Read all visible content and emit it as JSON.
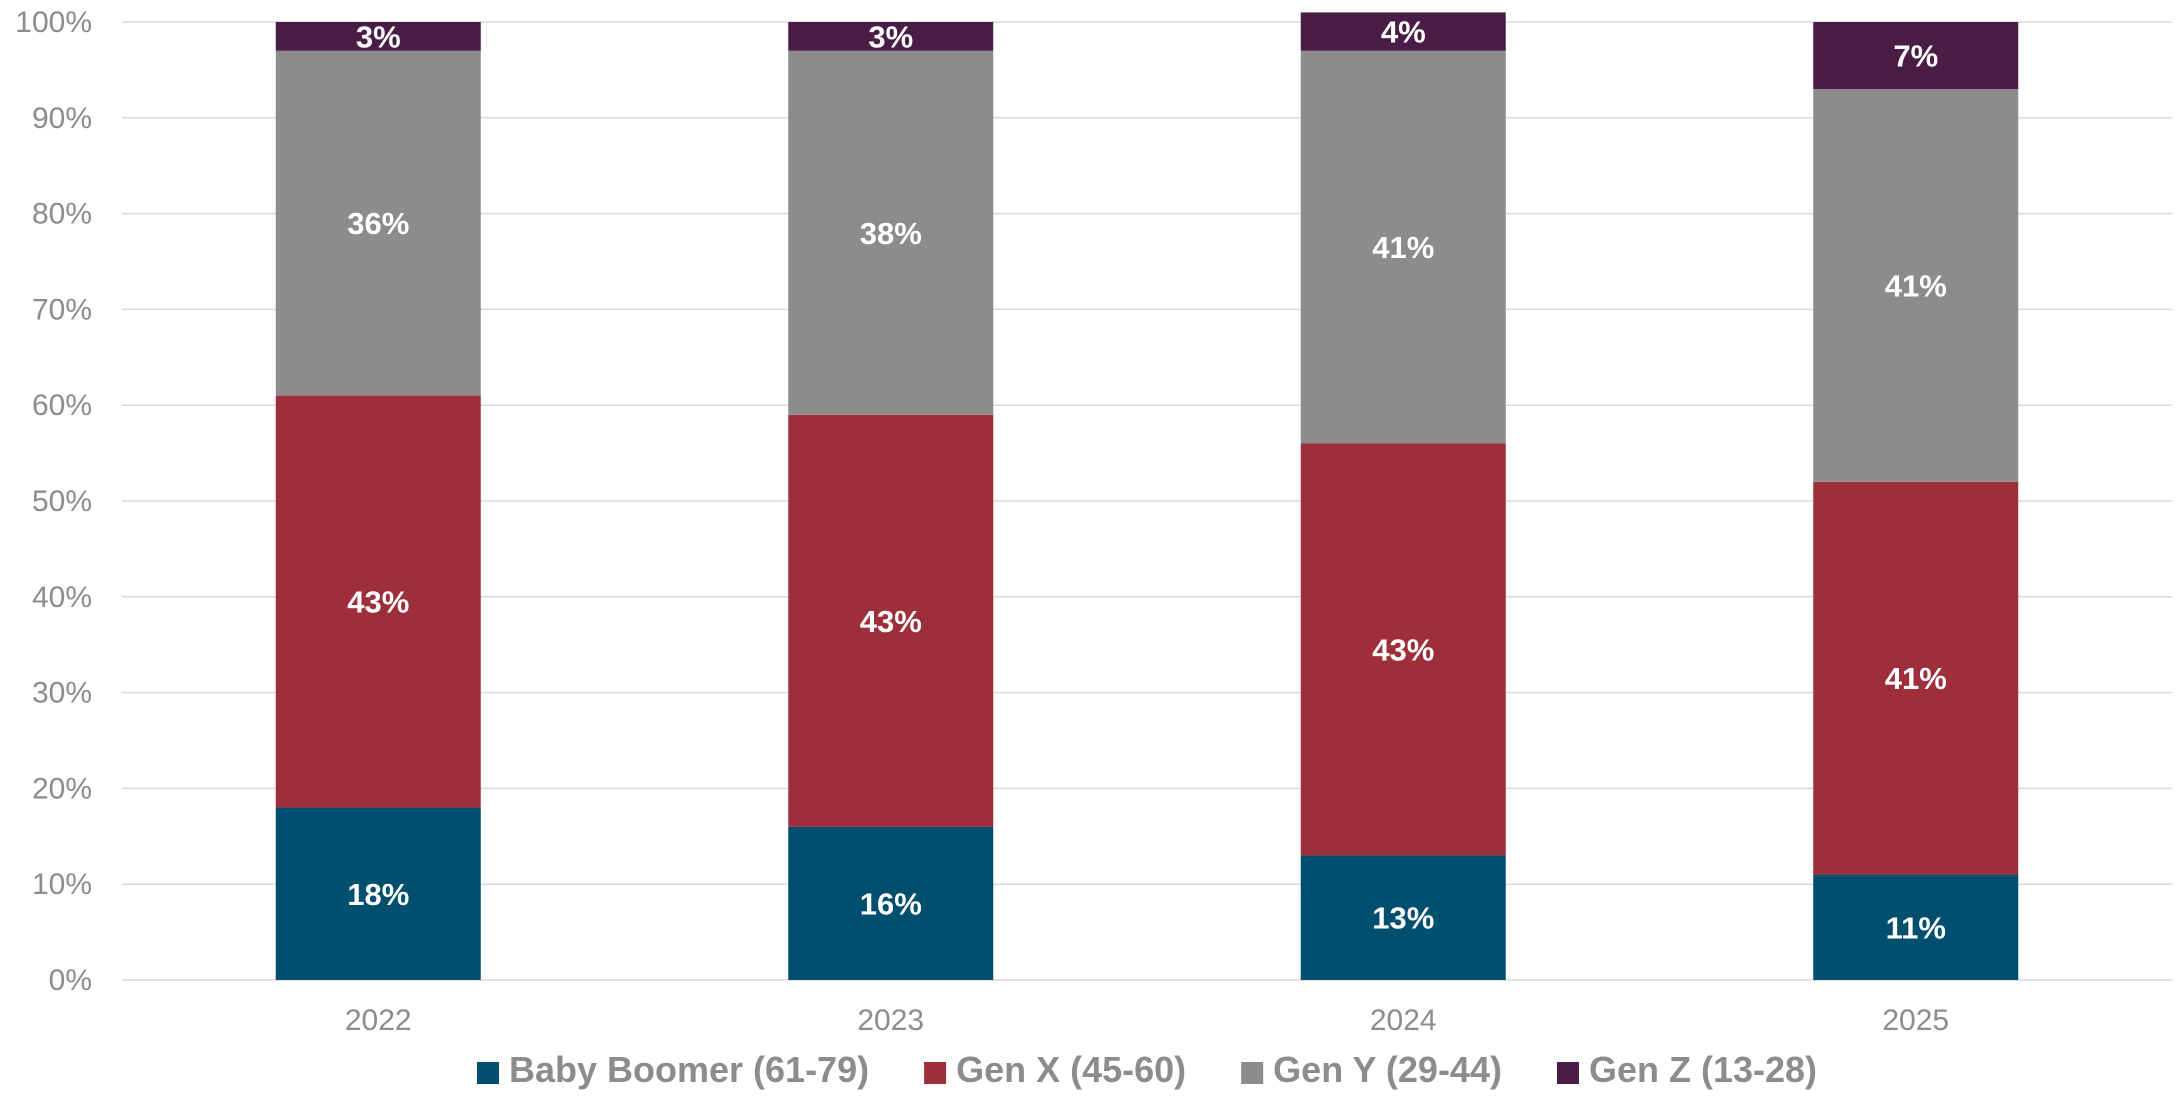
{
  "chart_data": {
    "type": "bar",
    "stacked": true,
    "categories": [
      "2022",
      "2023",
      "2024",
      "2025"
    ],
    "series": [
      {
        "name": "Baby Boomer (61-79)",
        "values": [
          18,
          16,
          13,
          11
        ],
        "labels": [
          "18%",
          "16%",
          "13%",
          "11%"
        ],
        "color": "#004f6e"
      },
      {
        "name": "Gen X (45-60)",
        "values": [
          43,
          43,
          43,
          41
        ],
        "labels": [
          "43%",
          "43%",
          "43%",
          "41%"
        ],
        "color": "#9e2f3a"
      },
      {
        "name": "Gen Y (29-44)",
        "values": [
          36,
          38,
          41,
          41
        ],
        "labels": [
          "36%",
          "38%",
          "41%",
          "41%"
        ],
        "color": "#8c8c8c"
      },
      {
        "name": "Gen Z (13-28)",
        "values": [
          3,
          3,
          4,
          7
        ],
        "labels": [
          "3%",
          "3%",
          "4%",
          "7%"
        ],
        "color": "#4a1d47"
      }
    ],
    "title": "",
    "xlabel": "",
    "ylabel": "",
    "ylim": [
      0,
      100
    ],
    "yticks": [
      0,
      10,
      20,
      30,
      40,
      50,
      60,
      70,
      80,
      90,
      100
    ],
    "ytick_labels": [
      "0%",
      "10%",
      "20%",
      "30%",
      "40%",
      "50%",
      "60%",
      "70%",
      "80%",
      "90%",
      "100%"
    ],
    "grid": true,
    "legend_position": "bottom",
    "colors": {
      "gridline": "#d9d9d9",
      "axis_text": "#8c8c8c",
      "label_text": "#ffffff"
    }
  }
}
